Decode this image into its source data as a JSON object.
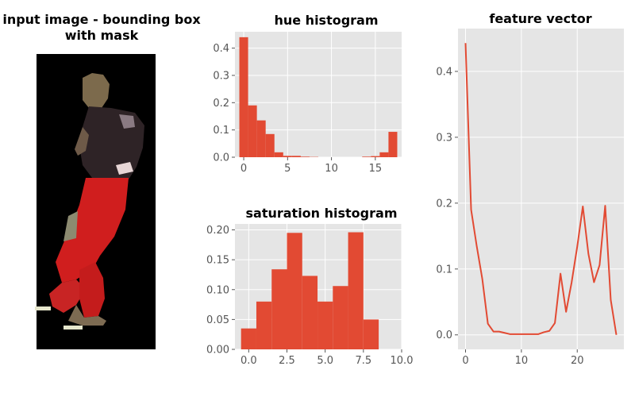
{
  "figure": {
    "background": "#ffffff",
    "axes_background": "#e5e5e5",
    "grid_color": "#ffffff",
    "mark_color": "#e24a33"
  },
  "image_panel": {
    "title_line1": "input image - bounding box",
    "title_line2": "with mask",
    "background": "#000000"
  },
  "chart_data": [
    {
      "type": "bar",
      "title": "hue histogram",
      "xlabel": "",
      "ylabel": "",
      "bin_width": 1,
      "x": [
        0,
        1,
        2,
        3,
        4,
        5,
        6,
        7,
        8,
        9,
        10,
        11,
        12,
        13,
        14,
        15,
        16,
        17
      ],
      "values": [
        0.44,
        0.19,
        0.135,
        0.085,
        0.018,
        0.005,
        0.005,
        0.002,
        0.001,
        0,
        0,
        0,
        0,
        0,
        0.002,
        0.004,
        0.018,
        0.093
      ],
      "xlim": [
        -1,
        18
      ],
      "ylim": [
        0,
        0.46
      ],
      "xticks": [
        0,
        5,
        10,
        15
      ],
      "xtick_labels": [
        "0",
        "5",
        "10",
        "15"
      ],
      "yticks": [
        0,
        0.1,
        0.2,
        0.3,
        0.4
      ],
      "ytick_labels": [
        "0.0",
        "0.1",
        "0.2",
        "0.3",
        "0.4"
      ],
      "grid": true
    },
    {
      "type": "bar",
      "title": "saturation histogram",
      "xlabel": "",
      "ylabel": "",
      "bin_width": 1,
      "x": [
        0,
        1,
        2,
        3,
        4,
        5,
        6,
        7,
        8
      ],
      "values": [
        0.035,
        0.08,
        0.134,
        0.195,
        0.123,
        0.08,
        0.106,
        0.196,
        0.05
      ],
      "xlim": [
        -0.9,
        10
      ],
      "ylim": [
        0,
        0.21
      ],
      "xticks": [
        0,
        2.5,
        5,
        7.5,
        10
      ],
      "xtick_labels": [
        "0.0",
        "2.5",
        "5.0",
        "7.5",
        "10.0"
      ],
      "yticks": [
        0,
        0.05,
        0.1,
        0.15,
        0.2
      ],
      "ytick_labels": [
        "0.00",
        "0.05",
        "0.10",
        "0.15",
        "0.20"
      ],
      "grid": true
    },
    {
      "type": "line",
      "title": "feature vector",
      "xlabel": "",
      "ylabel": "",
      "x": [
        0,
        1,
        2,
        3,
        4,
        5,
        6,
        7,
        8,
        9,
        10,
        11,
        12,
        13,
        14,
        15,
        16,
        17,
        18,
        19,
        20,
        21,
        22,
        23,
        24,
        25,
        26,
        27
      ],
      "values": [
        0.443,
        0.19,
        0.135,
        0.085,
        0.017,
        0.005,
        0.005,
        0.003,
        0.001,
        0.001,
        0.001,
        0.001,
        0.001,
        0.001,
        0.004,
        0.006,
        0.018,
        0.093,
        0.035,
        0.08,
        0.134,
        0.195,
        0.123,
        0.08,
        0.106,
        0.196,
        0.053,
        0.0
      ],
      "xlim": [
        -1.35,
        28.35
      ],
      "ylim": [
        -0.022,
        0.465
      ],
      "xticks": [
        0,
        10,
        20
      ],
      "xtick_labels": [
        "0",
        "10",
        "20"
      ],
      "yticks": [
        0,
        0.1,
        0.2,
        0.3,
        0.4
      ],
      "ytick_labels": [
        "0.0",
        "0.1",
        "0.2",
        "0.3",
        "0.4"
      ],
      "grid": true
    }
  ]
}
